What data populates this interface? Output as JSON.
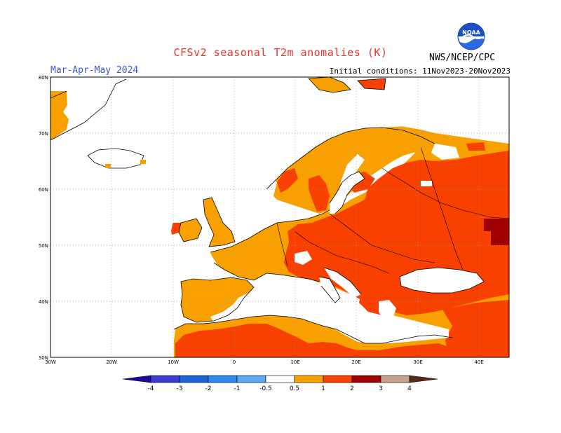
{
  "header": {
    "title": "CFSv2 seasonal T2m anomalies (K)",
    "season": "Mar-Apr-May 2024",
    "initial_conditions": "Initial conditions: 11Nov2023-20Nov2023",
    "agency": "NWS/NCEP/CPC",
    "logo_text": "NOAA"
  },
  "axes": {
    "lat_labels": [
      "80N",
      "70N",
      "60N",
      "50N",
      "40N",
      "30N"
    ],
    "lon_labels": [
      "30W",
      "20W",
      "10W",
      "0",
      "10E",
      "20E",
      "30E",
      "40E"
    ],
    "lat_range": [
      30,
      80
    ],
    "lon_range": [
      -30,
      45
    ]
  },
  "legend": {
    "tick_labels": [
      "-4",
      "-3",
      "-2",
      "-1",
      "-0.5",
      "0.5",
      "1",
      "2",
      "3",
      "4"
    ],
    "colors": [
      "#1c0aa0",
      "#3a3ccf",
      "#1a64d8",
      "#2a8af0",
      "#5aa8f5",
      "#8cc8f8",
      "#ffffff",
      "#f8a000",
      "#f84000",
      "#a00000",
      "#c8a090",
      "#5a2a18"
    ]
  },
  "colors": {
    "land": "#ffffff",
    "anom_0_5_1": "#f8a000",
    "anom_1_2": "#f84000",
    "anom_2_3": "#a00000",
    "coast": "#000000",
    "grid": "#999999"
  }
}
